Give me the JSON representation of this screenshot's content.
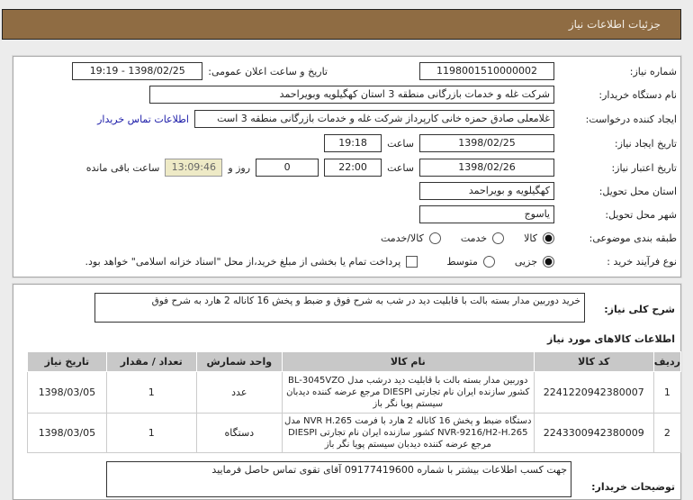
{
  "header": {
    "title": "جزئیات اطلاعات نیاز"
  },
  "form": {
    "need_number_label": "شماره نیاز:",
    "need_number": "1198001510000002",
    "announce_label": "تاریخ و ساعت اعلان عمومی:",
    "announce_value": "1398/02/25 - 19:19",
    "buyer_label": "نام دستگاه خریدار:",
    "buyer_value": "شرکت غله و خدمات بازرگانی منطقه 3 استان کهگیلویه وبویراحمد",
    "requester_label": "ایجاد کننده درخواست:",
    "requester_value": "غلامعلی صادق حمزه خانی کارپرداز شرکت غله و خدمات بازرگانی منطقه 3 است",
    "contact_link": "اطلاعات تماس خریدار",
    "created_label": "تاریخ ایجاد نیاز:",
    "created_date": "1398/02/25",
    "time_label": "ساعت",
    "created_time": "19:18",
    "valid_label": "تاریخ اعتبار نیاز:",
    "valid_date": "1398/02/26",
    "valid_time": "22:00",
    "days": "0",
    "days_label": "روز و",
    "remaining": "13:09:46",
    "remaining_label": "ساعت باقی مانده",
    "province_label": "استان محل تحویل:",
    "province": "کهگیلویه و بویراحمد",
    "city_label": "شهر محل تحویل:",
    "city": "یاسوج",
    "category_label": "طبقه بندی موضوعی:",
    "category_options": [
      "کالا",
      "خدمت",
      "کالا/خدمت"
    ],
    "category_selected": "کالا",
    "purchase_label": "نوع فرآیند خرید :",
    "purchase_options": [
      "جزیی",
      "متوسط"
    ],
    "purchase_selected": "جزیی",
    "treasury_note": "پرداخت تمام یا بخشی از مبلغ خرید،از محل \"اسناد خزانه اسلامی\" خواهد بود."
  },
  "summary": {
    "label": "شرح کلی نیاز:",
    "text": "خرید دوربین مدار بسته بالت با قابلیت دید در شب به شرح فوق و ضبط و پخش 16 کاناله 2 هارد به شرح فوق"
  },
  "items": {
    "title": "اطلاعات کالاهای مورد نیاز",
    "columns": [
      "ردیف",
      "کد کالا",
      "نام کالا",
      "واحد شمارش",
      "تعداد / مقدار",
      "تاریخ نیاز"
    ],
    "rows": [
      {
        "idx": "1",
        "code": "2241220942380007",
        "name": "دوربین مدار بسته بالت با قابلیت دید درشب مدل BL-3045VZO کشور سازنده ایران نام تجارتی DIESPI مرجع عرضه کننده دیدبان سیستم پویا نگر باز",
        "unit": "عدد",
        "qty": "1",
        "date": "1398/03/05"
      },
      {
        "idx": "2",
        "code": "2243300942380009",
        "name": "دستگاه ضبط و پخش 16 کاناله 2 هارد با فرمت NVR H.265 مدل NVR-9216/H2-H.265 کشور سازنده ایران نام تجارتی DIESPI مرجع عرضه کننده دیدبان سیستم پویا نگر باز",
        "unit": "دستگاه",
        "qty": "1",
        "date": "1398/03/05"
      }
    ]
  },
  "notes": {
    "label": "توضیحات خریدار:",
    "text": "جهت کسب اطلاعات بیشتر با شماره 09177419600 آقای تقوی تماس حاصل فرمایید"
  }
}
